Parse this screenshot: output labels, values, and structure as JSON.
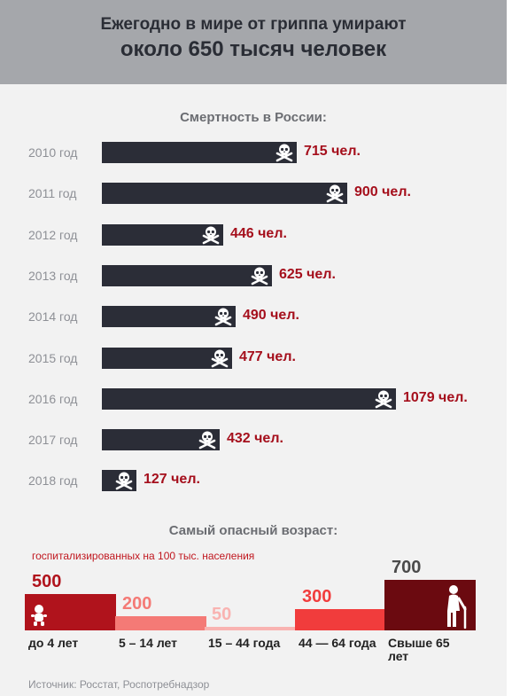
{
  "header": {
    "line1": "Ежегодно в мире от гриппа умирают",
    "line2": "около 650 тысяч человек"
  },
  "chart_data": [
    {
      "type": "bar",
      "orientation": "horizontal",
      "title": "Смертность в России:",
      "categories": [
        "2010 год",
        "2011 год",
        "2012 год",
        "2013 год",
        "2014 год",
        "2015 год",
        "2016 год",
        "2017 год",
        "2018 год"
      ],
      "values": [
        715,
        900,
        446,
        625,
        490,
        477,
        1079,
        432,
        127
      ],
      "value_labels": [
        "715 чел.",
        "900 чел.",
        "446 чел.",
        "625 чел.",
        "490 чел.",
        "477 чел.",
        "1079 чел.",
        "432 чел.",
        "127 чел."
      ],
      "bar_color": "#2b2d37",
      "label_color": "#a50f1c",
      "icon": "skull-crossbones-icon"
    },
    {
      "type": "bar",
      "title": "Самый опасный возраст:",
      "subtitle": "госпитализированных на 100 тыс. населения",
      "categories": [
        "до 4 лет",
        "5 – 14 лет",
        "15 – 44 года",
        "44 — 64 года",
        "Свыше 65 лет"
      ],
      "values": [
        500,
        200,
        50,
        300,
        700
      ],
      "value_labels": [
        "500",
        "200",
        "50",
        "300",
        "700"
      ],
      "colors": [
        "#b0131c",
        "#f47a76",
        "#f9b3b1",
        "#f13c3c",
        "#6b0a10"
      ],
      "icons": [
        "baby-icon",
        "",
        "",
        "",
        "elderly-person-icon"
      ]
    }
  ],
  "source": "Источник: Росстат, Роспотребнадзор"
}
